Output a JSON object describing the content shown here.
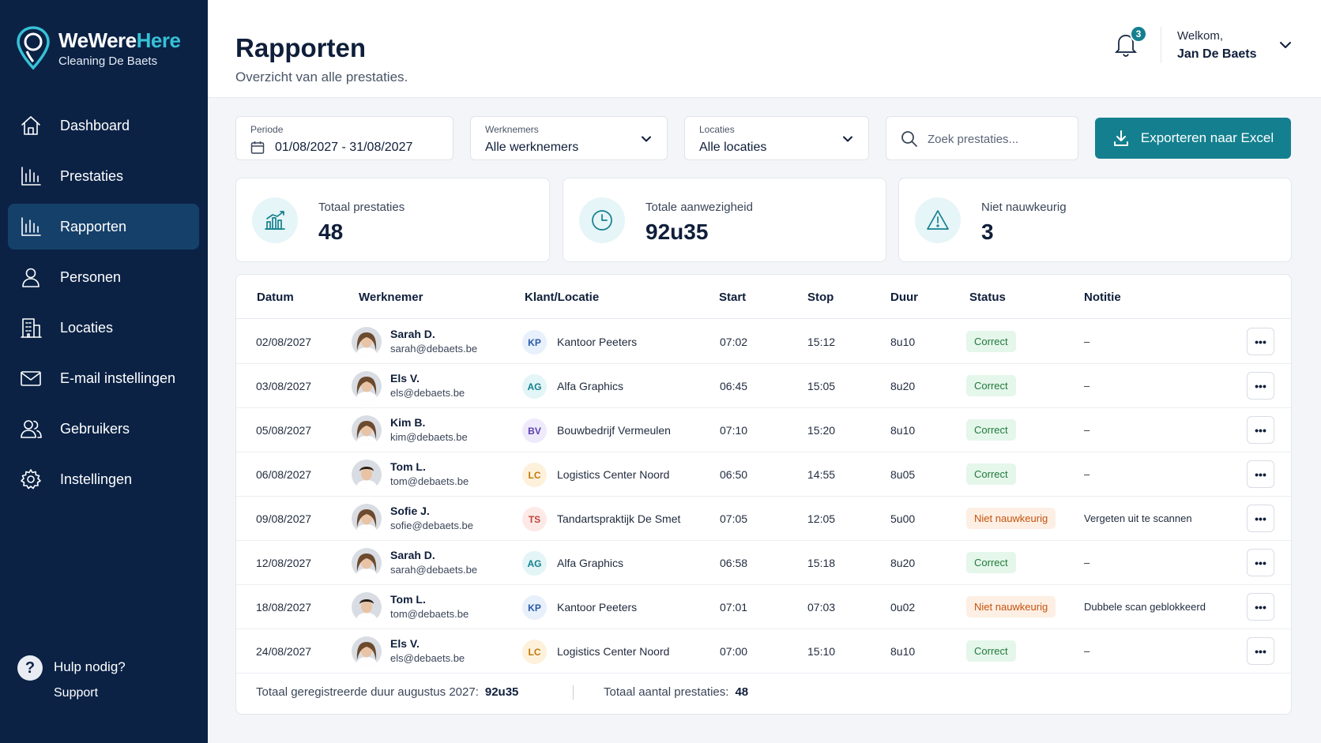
{
  "brand": {
    "name_part1": "WeWere",
    "name_part2": "Here",
    "subtitle": "Cleaning De Baets",
    "accent": "#36c1d6"
  },
  "sidebar": {
    "items": [
      {
        "label": "Dashboard",
        "icon": "home-icon",
        "active": false
      },
      {
        "label": "Prestaties",
        "icon": "bar-chart-icon",
        "active": false
      },
      {
        "label": "Rapporten",
        "icon": "bar-chart-icon",
        "active": true
      },
      {
        "label": "Personen",
        "icon": "person-icon",
        "active": false
      },
      {
        "label": "Locaties",
        "icon": "building-icon",
        "active": false
      },
      {
        "label": "E-mail instellingen",
        "icon": "mail-icon",
        "active": false
      },
      {
        "label": "Gebruikers",
        "icon": "users-icon",
        "active": false
      },
      {
        "label": "Instellingen",
        "icon": "gear-icon",
        "active": false
      }
    ],
    "help": {
      "title": "Hulp nodig?",
      "sub": "Support"
    }
  },
  "header": {
    "title": "Rapporten",
    "subtitle": "Overzicht van alle prestaties.",
    "notifications": "3",
    "welcome_label": "Welkom,",
    "user_name": "Jan De Baets"
  },
  "filters": {
    "period": {
      "label": "Periode",
      "value": "01/08/2027 - 31/08/2027"
    },
    "employees": {
      "label": "Werknemers",
      "value": "Alle werknemers"
    },
    "locations": {
      "label": "Locaties",
      "value": "Alle locaties"
    },
    "search_placeholder": "Zoek prestaties...",
    "export_label": "Exporteren naar Excel"
  },
  "stats": [
    {
      "label": "Totaal prestaties",
      "value": "48",
      "icon": "bar-chart-icon"
    },
    {
      "label": "Totale aanwezigheid",
      "value": "92u35",
      "icon": "clock-icon"
    },
    {
      "label": "Niet nauwkeurig",
      "value": "3",
      "icon": "warning-icon"
    }
  ],
  "table": {
    "headers": {
      "date": "Datum",
      "employee": "Werknemer",
      "client": "Klant/Locatie",
      "start": "Start",
      "stop": "Stop",
      "duration": "Duur",
      "status": "Status",
      "note": "Notitie"
    },
    "more_label": "•••",
    "rows": [
      {
        "date": "02/08/2027",
        "name": "Sarah D.",
        "email": "sarah@debaets.be",
        "avatar": "female",
        "loc_code": "KP",
        "location": "Kantoor Peeters",
        "start": "07:02",
        "stop": "15:12",
        "duration": "8u10",
        "status": "Correct",
        "status_type": "ok",
        "note": "–"
      },
      {
        "date": "03/08/2027",
        "name": "Els V.",
        "email": "els@debaets.be",
        "avatar": "female",
        "loc_code": "AG",
        "location": "Alfa Graphics",
        "start": "06:45",
        "stop": "15:05",
        "duration": "8u20",
        "status": "Correct",
        "status_type": "ok",
        "note": "–"
      },
      {
        "date": "05/08/2027",
        "name": "Kim B.",
        "email": "kim@debaets.be",
        "avatar": "female",
        "loc_code": "BV",
        "location": "Bouwbedrijf Vermeulen",
        "start": "07:10",
        "stop": "15:20",
        "duration": "8u10",
        "status": "Correct",
        "status_type": "ok",
        "note": "–"
      },
      {
        "date": "06/08/2027",
        "name": "Tom L.",
        "email": "tom@debaets.be",
        "avatar": "male",
        "loc_code": "LC",
        "location": "Logistics Center Noord",
        "start": "06:50",
        "stop": "14:55",
        "duration": "8u05",
        "status": "Correct",
        "status_type": "ok",
        "note": "–"
      },
      {
        "date": "09/08/2027",
        "name": "Sofie J.",
        "email": "sofie@debaets.be",
        "avatar": "female",
        "loc_code": "TS",
        "location": "Tandartspraktijk De Smet",
        "start": "07:05",
        "stop": "12:05",
        "duration": "5u00",
        "status": "Niet nauwkeurig",
        "status_type": "warn",
        "note": "Vergeten uit te scannen"
      },
      {
        "date": "12/08/2027",
        "name": "Sarah D.",
        "email": "sarah@debaets.be",
        "avatar": "female",
        "loc_code": "AG",
        "location": "Alfa Graphics",
        "start": "06:58",
        "stop": "15:18",
        "duration": "8u20",
        "status": "Correct",
        "status_type": "ok",
        "note": "–"
      },
      {
        "date": "18/08/2027",
        "name": "Tom L.",
        "email": "tom@debaets.be",
        "avatar": "male",
        "loc_code": "KP",
        "location": "Kantoor Peeters",
        "start": "07:01",
        "stop": "07:03",
        "duration": "0u02",
        "status": "Niet nauwkeurig",
        "status_type": "warn",
        "note": "Dubbele scan geblokkeerd"
      },
      {
        "date": "24/08/2027",
        "name": "Els V.",
        "email": "els@debaets.be",
        "avatar": "female",
        "loc_code": "LC",
        "location": "Logistics Center Noord",
        "start": "07:00",
        "stop": "15:10",
        "duration": "8u10",
        "status": "Correct",
        "status_type": "ok",
        "note": "–"
      }
    ],
    "loc_colors": {
      "KP": {
        "bg": "#e8f0fb",
        "fg": "#2a5aa8"
      },
      "AG": {
        "bg": "#e3f5f6",
        "fg": "#14808f"
      },
      "BV": {
        "bg": "#efeafb",
        "fg": "#5b3fb0"
      },
      "LC": {
        "bg": "#fdf1dc",
        "fg": "#c07a0c"
      },
      "TS": {
        "bg": "#fde9e6",
        "fg": "#c0443a"
      }
    },
    "footer": {
      "duration_label": "Totaal geregistreerde duur augustus 2027:",
      "duration_value": "92u35",
      "count_label": "Totaal aantal prestaties:",
      "count_value": "48"
    }
  }
}
